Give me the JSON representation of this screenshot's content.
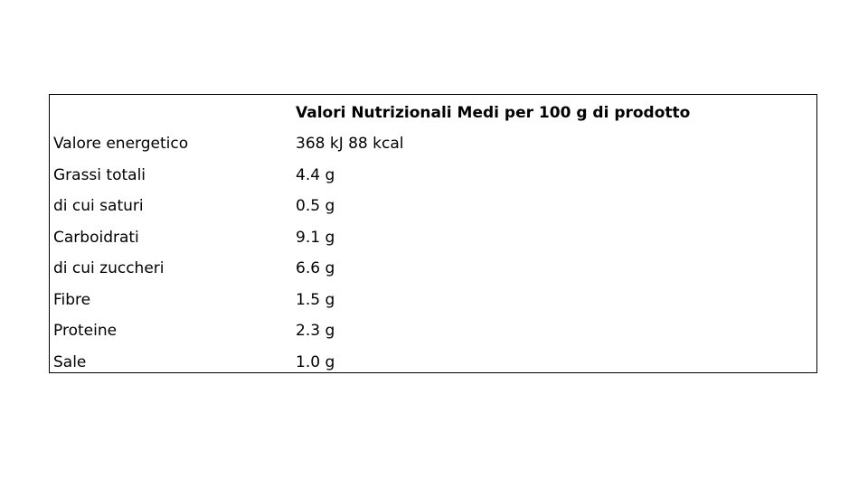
{
  "table": {
    "header": [
      "",
      "Valori Nutrizionali Medi per 100 g di prodotto"
    ],
    "rows": [
      [
        "Valore energetico",
        "368 kJ 88 kcal"
      ],
      [
        "Grassi totali",
        "4.4 g"
      ],
      [
        "di cui saturi",
        "0.5 g"
      ],
      [
        "Carboidrati",
        "9.1 g"
      ],
      [
        "di cui zuccheri",
        "6.6 g"
      ],
      [
        "Fibre",
        "1.5 g"
      ],
      [
        "Proteine",
        "2.3 g"
      ],
      [
        "Sale",
        "1.0 g"
      ]
    ]
  }
}
